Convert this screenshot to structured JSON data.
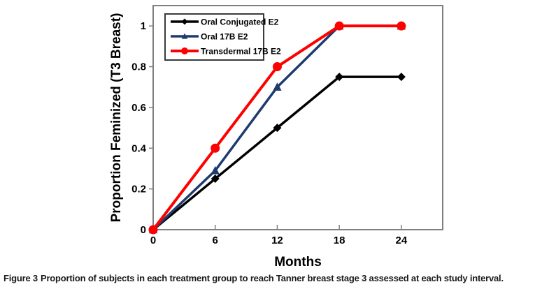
{
  "figure": {
    "caption_tag": "Figure 3",
    "caption_text": "Proportion of subjects in each treatment group to reach Tanner breast stage 3 assessed at each study interval."
  },
  "chart_data": {
    "type": "line",
    "title": "",
    "xlabel": "Months",
    "ylabel": "Proportion Feminized (T3 Breast)",
    "x": [
      0,
      6,
      12,
      18,
      24
    ],
    "x_tick_labels": [
      "0",
      "6",
      "12",
      "18",
      "24"
    ],
    "y_ticks": [
      0,
      0.2,
      0.4,
      0.6,
      0.8,
      1
    ],
    "y_tick_labels": [
      "0",
      "0.2",
      "0.4",
      "0.6",
      "0.8",
      "1"
    ],
    "xlim": [
      0,
      28
    ],
    "ylim": [
      0,
      1.1
    ],
    "grid": false,
    "legend_position": "top-left-inside",
    "series": [
      {
        "name": "Oral Conjugated E2",
        "color": "#000000",
        "marker": "diamond",
        "values": [
          0,
          0.25,
          0.5,
          0.75,
          0.75
        ]
      },
      {
        "name": "Oral 17B E2",
        "color": "#1e3a6e",
        "marker": "triangle",
        "values": [
          0,
          0.29,
          0.7,
          1.0,
          1.0
        ]
      },
      {
        "name": "Transdermal 17B E2",
        "color": "#fe0000",
        "marker": "circle",
        "values": [
          0,
          0.4,
          0.8,
          1.0,
          1.0
        ]
      }
    ],
    "colors": {
      "axis": "#7f7f7f",
      "tick_text": "#000000",
      "legend_border": "#3a3a3a",
      "legend_fill": "#ffffff"
    }
  }
}
